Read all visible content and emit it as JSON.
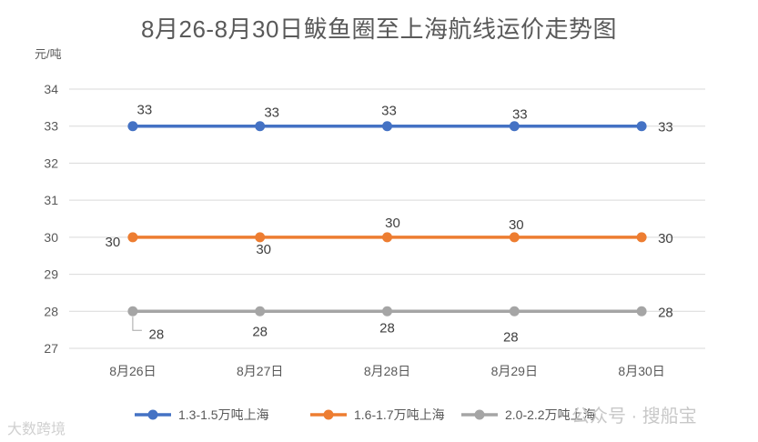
{
  "chart_data": {
    "type": "line",
    "title": "8月26-8月30日鲅鱼圈至上海航线运价走势图",
    "unit_label": "元/吨",
    "categories": [
      "8月26日",
      "8月27日",
      "8月28日",
      "8月29日",
      "8月30日"
    ],
    "ylim": [
      27,
      34
    ],
    "yticks": [
      "27",
      "28",
      "29",
      "30",
      "31",
      "32",
      "33",
      "34"
    ],
    "grid": true,
    "legend_position": "bottom",
    "series": [
      {
        "name": "1.3-1.5万吨上海",
        "color": "#4472c4",
        "values": [
          33,
          33,
          33,
          33,
          33
        ]
      },
      {
        "name": "1.6-1.7万吨上海",
        "color": "#ed7d31",
        "values": [
          30,
          30,
          30,
          30,
          30
        ]
      },
      {
        "name": "2.0-2.2万吨上海",
        "color": "#a5a5a5",
        "values": [
          28,
          28,
          28,
          28,
          28
        ]
      }
    ]
  },
  "watermarks": {
    "left": "大数跨境",
    "right": "公众号 · 搜船宝"
  }
}
